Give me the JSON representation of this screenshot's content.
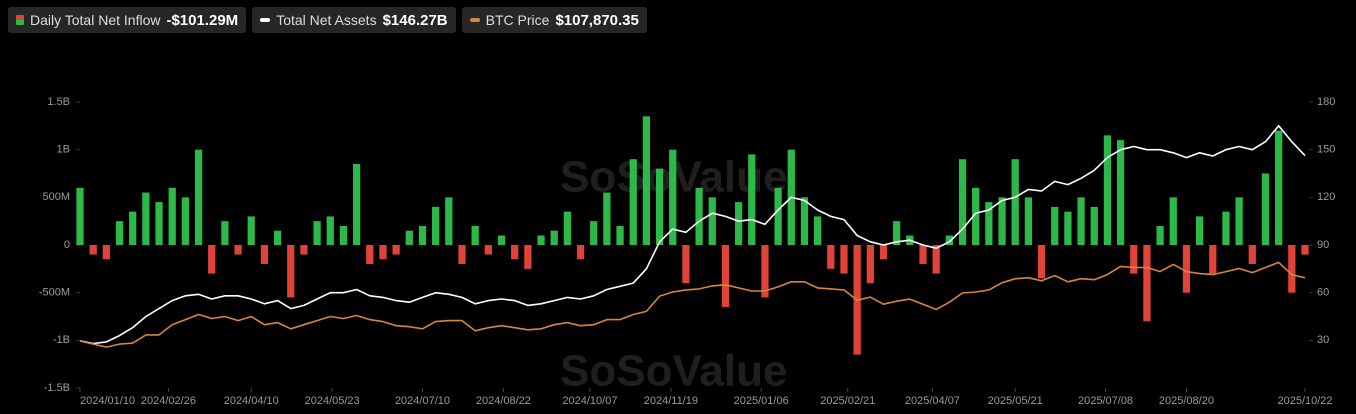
{
  "chart_data": {
    "type": "bar-line",
    "watermark": "SoSoValue",
    "xlim": [
      "2024/01/10",
      "2025/10/22"
    ],
    "xticks": [
      "2024/01/10",
      "2024/02/26",
      "2024/04/10",
      "2024/05/23",
      "2024/07/10",
      "2024/08/22",
      "2024/10/07",
      "2024/11/19",
      "2025/01/06",
      "2025/02/21",
      "2025/04/07",
      "2025/05/21",
      "2025/07/08",
      "2025/08/20",
      "2025/10/22"
    ],
    "ylim": [
      -1.5,
      1.5
    ],
    "yticks": [
      {
        "value": -1.5,
        "label": "-1.5B"
      },
      {
        "value": -1,
        "label": "-1B"
      },
      {
        "value": -0.5,
        "label": "-500M"
      },
      0,
      {
        "value": 0.5,
        "label": "500M"
      },
      {
        "value": 1,
        "label": "1B"
      },
      {
        "value": 1.5,
        "label": "1.5B"
      }
    ],
    "y2lim": [
      0,
      180
    ],
    "y2ticks": [
      30,
      60,
      90,
      120,
      150,
      180
    ],
    "y3lim": [
      0,
      280000
    ],
    "x": [
      "2024/01/10",
      "2024/01/17",
      "2024/01/24",
      "2024/01/31",
      "2024/02/07",
      "2024/02/14",
      "2024/02/21",
      "2024/02/28",
      "2024/03/06",
      "2024/03/13",
      "2024/03/20",
      "2024/03/27",
      "2024/04/03",
      "2024/04/10",
      "2024/04/17",
      "2024/04/24",
      "2024/05/01",
      "2024/05/08",
      "2024/05/15",
      "2024/05/22",
      "2024/05/29",
      "2024/06/05",
      "2024/06/12",
      "2024/06/19",
      "2024/06/26",
      "2024/07/03",
      "2024/07/10",
      "2024/07/17",
      "2024/07/24",
      "2024/07/31",
      "2024/08/07",
      "2024/08/14",
      "2024/08/21",
      "2024/08/28",
      "2024/09/04",
      "2024/09/11",
      "2024/09/18",
      "2024/09/25",
      "2024/10/02",
      "2024/10/09",
      "2024/10/16",
      "2024/10/23",
      "2024/10/30",
      "2024/11/06",
      "2024/11/13",
      "2024/11/20",
      "2024/11/27",
      "2024/12/04",
      "2024/12/11",
      "2024/12/18",
      "2024/12/25",
      "2025/01/01",
      "2025/01/08",
      "2025/01/15",
      "2025/01/22",
      "2025/01/29",
      "2025/02/05",
      "2025/02/12",
      "2025/02/19",
      "2025/02/26",
      "2025/03/05",
      "2025/03/12",
      "2025/03/19",
      "2025/03/26",
      "2025/04/02",
      "2025/04/09",
      "2025/04/16",
      "2025/04/23",
      "2025/04/30",
      "2025/05/07",
      "2025/05/14",
      "2025/05/21",
      "2025/05/28",
      "2025/06/04",
      "2025/06/11",
      "2025/06/18",
      "2025/06/25",
      "2025/07/02",
      "2025/07/09",
      "2025/07/16",
      "2025/07/23",
      "2025/07/30",
      "2025/08/06",
      "2025/08/13",
      "2025/08/20",
      "2025/08/27",
      "2025/09/03",
      "2025/09/10",
      "2025/09/17",
      "2025/09/24",
      "2025/10/01",
      "2025/10/08",
      "2025/10/15",
      "2025/10/22"
    ],
    "series": [
      {
        "name": "Daily Total Net Inflow",
        "latest": "-$101.29M",
        "kind": "bar",
        "color": "#2db84a",
        "negative_color": "#e0433a",
        "values": [
          0.6,
          -0.1,
          -0.15,
          0.25,
          0.35,
          0.55,
          0.45,
          0.6,
          0.5,
          1.0,
          -0.3,
          0.25,
          -0.1,
          0.3,
          -0.2,
          0.15,
          -0.55,
          -0.1,
          0.25,
          0.3,
          0.2,
          0.85,
          -0.2,
          -0.15,
          -0.1,
          0.15,
          0.2,
          0.4,
          0.5,
          -0.2,
          0.2,
          -0.1,
          0.1,
          -0.15,
          -0.25,
          0.1,
          0.15,
          0.35,
          -0.15,
          0.25,
          0.55,
          0.2,
          0.9,
          1.35,
          0.8,
          1.0,
          -0.4,
          0.6,
          0.5,
          -0.65,
          0.45,
          0.95,
          -0.55,
          0.6,
          1.0,
          0.5,
          0.3,
          -0.25,
          -0.3,
          -1.15,
          -0.4,
          -0.15,
          0.25,
          0.1,
          -0.2,
          -0.3,
          0.1,
          0.9,
          0.6,
          0.45,
          0.5,
          0.9,
          0.5,
          -0.35,
          0.4,
          0.35,
          0.5,
          0.4,
          1.15,
          1.1,
          -0.3,
          -0.8,
          0.2,
          0.5,
          -0.5,
          0.3,
          -0.3,
          0.35,
          0.5,
          -0.2,
          0.75,
          1.2,
          -0.5,
          -0.10129
        ]
      },
      {
        "name": "Total Net Assets",
        "latest": "$146.27B",
        "kind": "line",
        "axis": "y2",
        "color": "#ffffff",
        "values": [
          29.7,
          28,
          29,
          33,
          38,
          45,
          50,
          55,
          58,
          59,
          56,
          58,
          58,
          56,
          53,
          55,
          50,
          52,
          56,
          60,
          60,
          62,
          58,
          57,
          55,
          54,
          57,
          60,
          59,
          57,
          53,
          55,
          56,
          55,
          52,
          53,
          55,
          57,
          56,
          58,
          62,
          64,
          66,
          75,
          92,
          100,
          98,
          105,
          110,
          108,
          105,
          106,
          103,
          112,
          120,
          118,
          112,
          108,
          106,
          96,
          92,
          90,
          92,
          93,
          90,
          88,
          92,
          100,
          110,
          112,
          118,
          120,
          125,
          124,
          130,
          128,
          132,
          137,
          145,
          150,
          152,
          150,
          150,
          148,
          145,
          148,
          146,
          150,
          152,
          150,
          155,
          165,
          155,
          146.27
        ]
      },
      {
        "name": "BTC Price",
        "latest": "$107,870.35",
        "kind": "line",
        "axis": "y3",
        "color": "#d4873a",
        "values": [
          46000,
          43000,
          40000,
          43000,
          44000,
          52000,
          52000,
          62000,
          67000,
          72000,
          68000,
          70000,
          66000,
          70000,
          62000,
          64000,
          58000,
          62000,
          66000,
          70000,
          68000,
          71000,
          67000,
          65000,
          61000,
          60000,
          58000,
          65000,
          66000,
          66000,
          56000,
          59000,
          61000,
          59000,
          57000,
          58000,
          62000,
          64000,
          61000,
          62000,
          67000,
          67000,
          72000,
          75000,
          90000,
          94000,
          96000,
          97000,
          100000,
          101000,
          98000,
          95000,
          95000,
          99000,
          104000,
          104000,
          98000,
          97000,
          96000,
          86000,
          89000,
          82000,
          85000,
          87000,
          82000,
          77000,
          84000,
          93000,
          94000,
          96000,
          103000,
          107000,
          108000,
          105000,
          110000,
          104000,
          107000,
          106000,
          111000,
          119000,
          118000,
          118000,
          114000,
          121000,
          114000,
          112000,
          111000,
          114000,
          117000,
          113000,
          118000,
          123000,
          111000,
          107870.35
        ]
      }
    ]
  }
}
